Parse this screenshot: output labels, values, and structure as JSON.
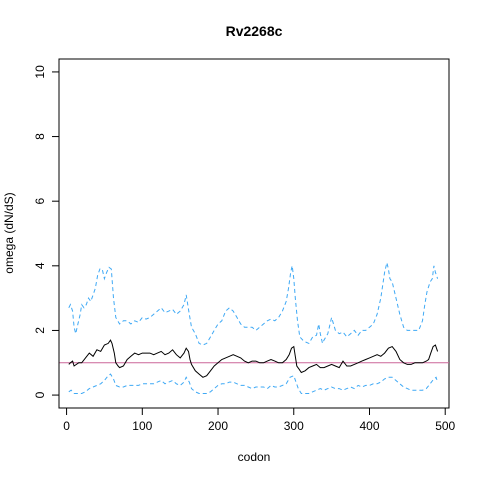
{
  "chart_data": {
    "type": "line",
    "title": "Rv2268c",
    "xlabel": "codon",
    "ylabel": "omega (dN/dS)",
    "xlim": [
      -10,
      505
    ],
    "ylim": [
      -0.4,
      10.4
    ],
    "x_ticks": [
      0,
      100,
      200,
      300,
      400,
      500
    ],
    "y_ticks": [
      0,
      2,
      4,
      6,
      8,
      10
    ],
    "x_tick_labels": [
      "0",
      "100",
      "200",
      "300",
      "400",
      "500"
    ],
    "y_tick_labels": [
      "0",
      "2",
      "4",
      "6",
      "8",
      "10"
    ],
    "grid": false,
    "legend": "none",
    "reference_line": {
      "y": 1,
      "color": "#cc6699"
    },
    "series": [
      {
        "style": "dashed",
        "color": "#3fa9f5",
        "x": [
          3,
          5,
          8,
          10,
          12,
          15,
          18,
          20,
          23,
          26,
          29,
          32,
          35,
          38,
          41,
          44,
          47,
          50,
          53,
          56,
          59,
          62,
          65,
          70,
          75,
          80,
          85,
          90,
          95,
          100,
          105,
          110,
          115,
          120,
          125,
          130,
          135,
          140,
          145,
          150,
          155,
          158,
          162,
          165,
          170,
          175,
          180,
          185,
          190,
          195,
          200,
          205,
          210,
          215,
          220,
          225,
          230,
          235,
          240,
          245,
          250,
          255,
          260,
          265,
          270,
          275,
          280,
          285,
          290,
          293,
          296,
          298,
          300,
          302,
          305,
          308,
          312,
          315,
          320,
          325,
          330,
          333,
          335,
          338,
          340,
          345,
          350,
          355,
          360,
          365,
          370,
          375,
          380,
          385,
          390,
          395,
          400,
          405,
          410,
          415,
          420,
          423,
          425,
          427,
          430,
          435,
          440,
          445,
          450,
          455,
          460,
          465,
          470,
          473,
          476,
          480,
          483,
          485,
          487,
          490
        ],
        "values": [
          2.7,
          2.8,
          2.6,
          2.1,
          1.9,
          2.2,
          2.5,
          2.8,
          2.7,
          2.8,
          3.0,
          2.9,
          3.1,
          3.3,
          3.7,
          3.9,
          3.9,
          3.6,
          3.8,
          3.95,
          3.9,
          3.0,
          2.4,
          2.2,
          2.3,
          2.3,
          2.2,
          2.3,
          2.25,
          2.4,
          2.35,
          2.4,
          2.5,
          2.6,
          2.7,
          2.55,
          2.6,
          2.65,
          2.5,
          2.6,
          2.8,
          3.1,
          2.5,
          2.1,
          1.9,
          1.6,
          1.55,
          1.6,
          1.8,
          2.0,
          2.2,
          2.3,
          2.6,
          2.7,
          2.6,
          2.4,
          2.2,
          2.1,
          2.1,
          2.1,
          2.0,
          2.1,
          2.2,
          2.3,
          2.35,
          2.3,
          2.4,
          2.6,
          2.9,
          3.3,
          3.8,
          4.0,
          3.6,
          3.0,
          2.3,
          1.8,
          1.7,
          1.65,
          1.6,
          1.8,
          1.85,
          2.2,
          1.9,
          1.6,
          1.7,
          1.9,
          2.4,
          2.0,
          1.9,
          1.95,
          1.8,
          1.9,
          2.0,
          1.85,
          2.0,
          2.0,
          2.1,
          2.2,
          2.5,
          3.0,
          3.8,
          4.1,
          3.9,
          3.6,
          3.5,
          3.0,
          2.5,
          2.1,
          2.0,
          2.0,
          2.0,
          2.0,
          2.3,
          2.8,
          3.2,
          3.5,
          3.6,
          4.0,
          3.8,
          3.6
        ]
      },
      {
        "style": "solid",
        "color": "#000000",
        "x": [
          3,
          5,
          8,
          10,
          13,
          16,
          20,
          25,
          30,
          35,
          40,
          45,
          50,
          55,
          58,
          60,
          63,
          65,
          68,
          70,
          75,
          80,
          85,
          90,
          95,
          100,
          105,
          110,
          115,
          120,
          125,
          130,
          135,
          140,
          145,
          150,
          155,
          158,
          161,
          163,
          165,
          170,
          175,
          180,
          185,
          190,
          195,
          200,
          205,
          210,
          215,
          220,
          225,
          230,
          235,
          240,
          245,
          250,
          255,
          260,
          265,
          270,
          275,
          280,
          285,
          290,
          294,
          297,
          300,
          302,
          304,
          307,
          310,
          315,
          320,
          325,
          330,
          335,
          340,
          345,
          350,
          355,
          360,
          365,
          370,
          375,
          380,
          385,
          390,
          395,
          400,
          405,
          410,
          415,
          420,
          425,
          430,
          435,
          440,
          445,
          450,
          455,
          460,
          465,
          470,
          475,
          478,
          481,
          484,
          487,
          490
        ],
        "values": [
          0.95,
          1.0,
          1.05,
          0.9,
          0.95,
          1.0,
          1.0,
          1.15,
          1.3,
          1.2,
          1.4,
          1.35,
          1.55,
          1.6,
          1.7,
          1.6,
          1.3,
          1.0,
          0.9,
          0.85,
          0.9,
          1.1,
          1.2,
          1.3,
          1.25,
          1.3,
          1.3,
          1.3,
          1.25,
          1.3,
          1.35,
          1.25,
          1.3,
          1.4,
          1.25,
          1.15,
          1.3,
          1.45,
          1.35,
          1.1,
          0.95,
          0.75,
          0.65,
          0.55,
          0.6,
          0.75,
          0.9,
          1.0,
          1.1,
          1.15,
          1.2,
          1.25,
          1.2,
          1.15,
          1.05,
          1.0,
          1.05,
          1.05,
          1.0,
          1.0,
          1.05,
          1.1,
          1.05,
          1.0,
          1.0,
          1.1,
          1.25,
          1.45,
          1.5,
          1.2,
          0.9,
          0.8,
          0.7,
          0.75,
          0.85,
          0.9,
          0.95,
          0.85,
          0.85,
          0.9,
          0.95,
          0.9,
          0.85,
          1.05,
          0.9,
          0.9,
          0.95,
          1.0,
          1.05,
          1.1,
          1.15,
          1.2,
          1.25,
          1.2,
          1.3,
          1.45,
          1.5,
          1.35,
          1.1,
          1.0,
          0.95,
          0.95,
          1.0,
          1.0,
          1.0,
          1.05,
          1.1,
          1.3,
          1.5,
          1.55,
          1.35
        ]
      },
      {
        "style": "dashed",
        "color": "#3fa9f5",
        "x": [
          3,
          6,
          10,
          15,
          20,
          25,
          30,
          35,
          40,
          45,
          50,
          55,
          58,
          62,
          65,
          70,
          75,
          80,
          85,
          90,
          95,
          100,
          105,
          110,
          115,
          120,
          125,
          130,
          135,
          140,
          145,
          150,
          155,
          158,
          162,
          165,
          170,
          175,
          180,
          185,
          190,
          195,
          200,
          205,
          210,
          215,
          220,
          225,
          230,
          235,
          240,
          245,
          250,
          255,
          260,
          265,
          270,
          275,
          280,
          285,
          290,
          295,
          300,
          303,
          306,
          310,
          315,
          320,
          325,
          330,
          335,
          340,
          345,
          350,
          355,
          360,
          365,
          370,
          375,
          380,
          385,
          390,
          395,
          400,
          405,
          410,
          415,
          420,
          425,
          430,
          435,
          440,
          445,
          450,
          455,
          460,
          465,
          470,
          475,
          480,
          485,
          488,
          490
        ],
        "values": [
          0.1,
          0.15,
          0.05,
          0.05,
          0.05,
          0.1,
          0.2,
          0.25,
          0.3,
          0.35,
          0.45,
          0.6,
          0.65,
          0.5,
          0.3,
          0.25,
          0.25,
          0.3,
          0.3,
          0.3,
          0.3,
          0.35,
          0.35,
          0.35,
          0.35,
          0.4,
          0.45,
          0.35,
          0.4,
          0.45,
          0.35,
          0.3,
          0.4,
          0.55,
          0.4,
          0.2,
          0.1,
          0.05,
          0.05,
          0.05,
          0.1,
          0.2,
          0.3,
          0.35,
          0.35,
          0.4,
          0.4,
          0.35,
          0.3,
          0.3,
          0.25,
          0.2,
          0.25,
          0.25,
          0.25,
          0.2,
          0.3,
          0.25,
          0.25,
          0.3,
          0.35,
          0.55,
          0.6,
          0.4,
          0.2,
          0.05,
          0.05,
          0.05,
          0.1,
          0.15,
          0.2,
          0.15,
          0.2,
          0.25,
          0.2,
          0.2,
          0.15,
          0.2,
          0.25,
          0.2,
          0.3,
          0.25,
          0.3,
          0.3,
          0.35,
          0.35,
          0.4,
          0.5,
          0.55,
          0.55,
          0.45,
          0.35,
          0.25,
          0.2,
          0.15,
          0.15,
          0.15,
          0.15,
          0.2,
          0.35,
          0.5,
          0.55,
          0.4
        ]
      }
    ]
  }
}
